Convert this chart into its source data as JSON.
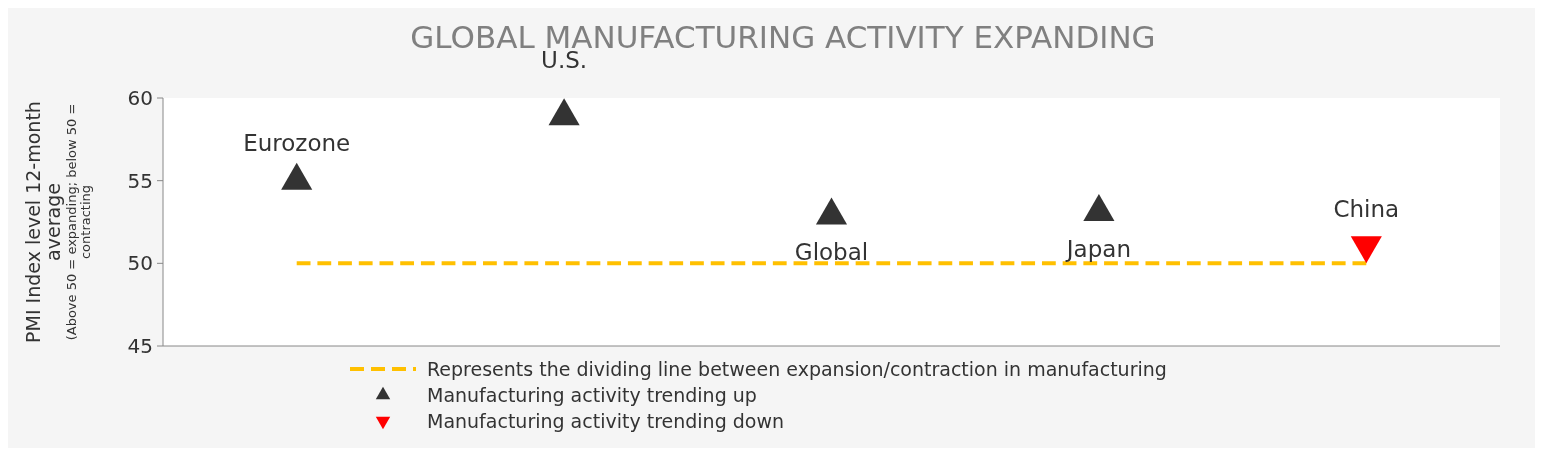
{
  "chart_data": {
    "type": "scatter",
    "title": "GLOBAL MANUFACTURING ACTIVITY EXPANDING",
    "ylabel": "PMI Index level 12-month average",
    "annotations": [
      "(Above 50 = expanding; below 50 = contracting"
    ],
    "categories": [
      "Eurozone",
      "U.S.",
      "Global",
      "Japan",
      "China"
    ],
    "ylim": [
      45,
      60
    ],
    "yticks": [
      45,
      50,
      55,
      60
    ],
    "grid": false,
    "legend": "bottom",
    "series": [
      {
        "name": "Represents the dividing line between expansion/contraction in manufacturing",
        "type": "line",
        "color": "#ffc000",
        "line_style": "dashed",
        "marker": "none",
        "values": [
          50,
          50,
          50,
          50,
          50
        ]
      },
      {
        "name": "Manufacturing activity trending up",
        "color": "#333333",
        "marker": "triangle",
        "values": [
          55,
          58.9,
          52.9,
          53.1,
          null
        ]
      },
      {
        "name": "Manufacturing activity trending down",
        "color": "#ff0000",
        "marker": "triangle-down",
        "values": [
          null,
          null,
          null,
          null,
          51.1
        ]
      }
    ]
  }
}
